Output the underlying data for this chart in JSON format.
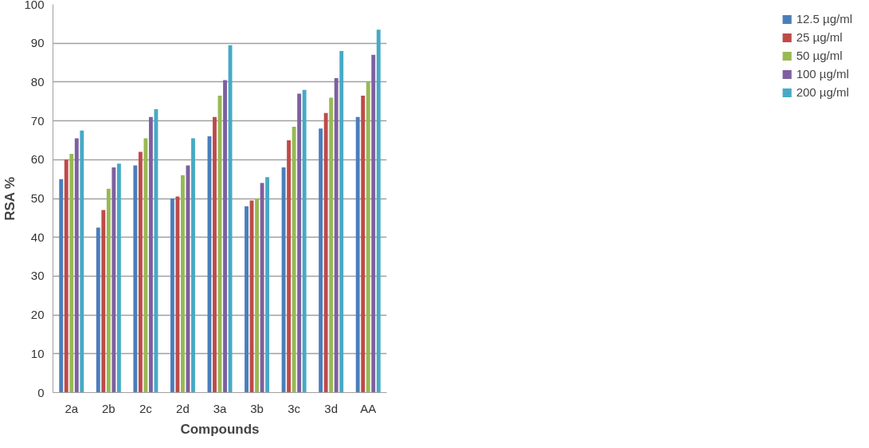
{
  "chart_data": {
    "type": "bar",
    "xlabel": "Compounds",
    "ylabel": "RSA %",
    "categories": [
      "2a",
      "2b",
      "2c",
      "2d",
      "3a",
      "3b",
      "3c",
      "3d",
      "AA"
    ],
    "series": [
      {
        "name": "12.5 µg/ml",
        "color": "#4a7ebb",
        "values": [
          55,
          42.5,
          58.5,
          50,
          66,
          48,
          58,
          68,
          71
        ]
      },
      {
        "name": "25 µg/ml",
        "color": "#be4b48",
        "values": [
          60,
          47,
          62,
          50.5,
          71,
          49.5,
          65,
          72,
          76.5
        ]
      },
      {
        "name": "50 µg/ml",
        "color": "#98b954",
        "values": [
          61.5,
          52.5,
          65.5,
          56,
          76.5,
          50,
          68.5,
          76,
          80
        ]
      },
      {
        "name": "100 µg/ml",
        "color": "#7d60a0",
        "values": [
          65.5,
          58,
          71,
          58.5,
          80.5,
          54,
          77,
          81,
          87
        ]
      },
      {
        "name": "200 µg/ml",
        "color": "#46aac5",
        "values": [
          67.5,
          59,
          73,
          65.5,
          89.5,
          55.5,
          78,
          88,
          93.5
        ]
      }
    ],
    "ylim": [
      0,
      100
    ],
    "yticks": [
      0,
      10,
      20,
      30,
      40,
      50,
      60,
      70,
      80,
      90,
      100
    ],
    "grid": "y",
    "legend": "right"
  }
}
